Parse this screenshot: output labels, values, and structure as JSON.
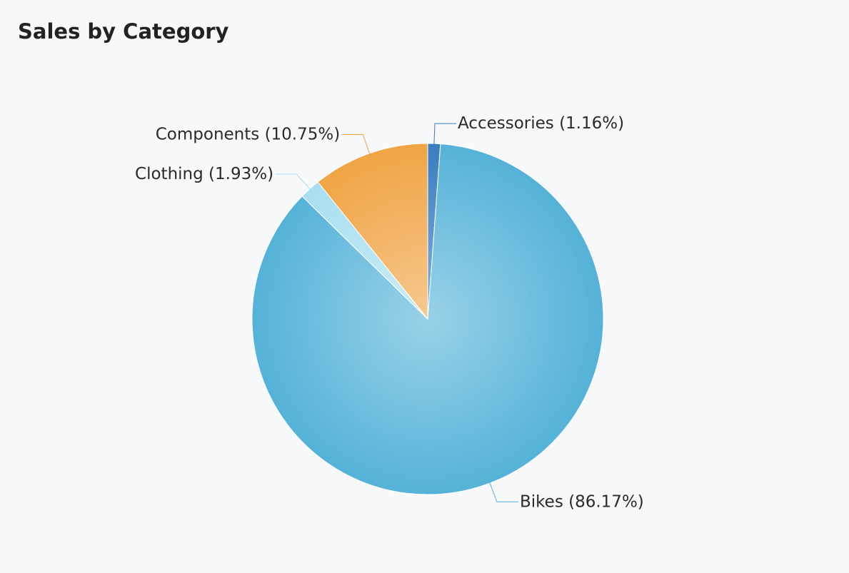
{
  "chart_data": {
    "type": "pie",
    "title": "Sales by Category",
    "categories": [
      "Accessories",
      "Bikes",
      "Clothing",
      "Components"
    ],
    "values": [
      1.16,
      86.17,
      1.93,
      10.75
    ],
    "value_labels": [
      "(1.16%)",
      "(86.17%)",
      "(1.93%)",
      "(10.75%)"
    ],
    "colors": [
      "#3a7bbf",
      "#55b2d8",
      "#a8dff0",
      "#f0a444"
    ]
  }
}
